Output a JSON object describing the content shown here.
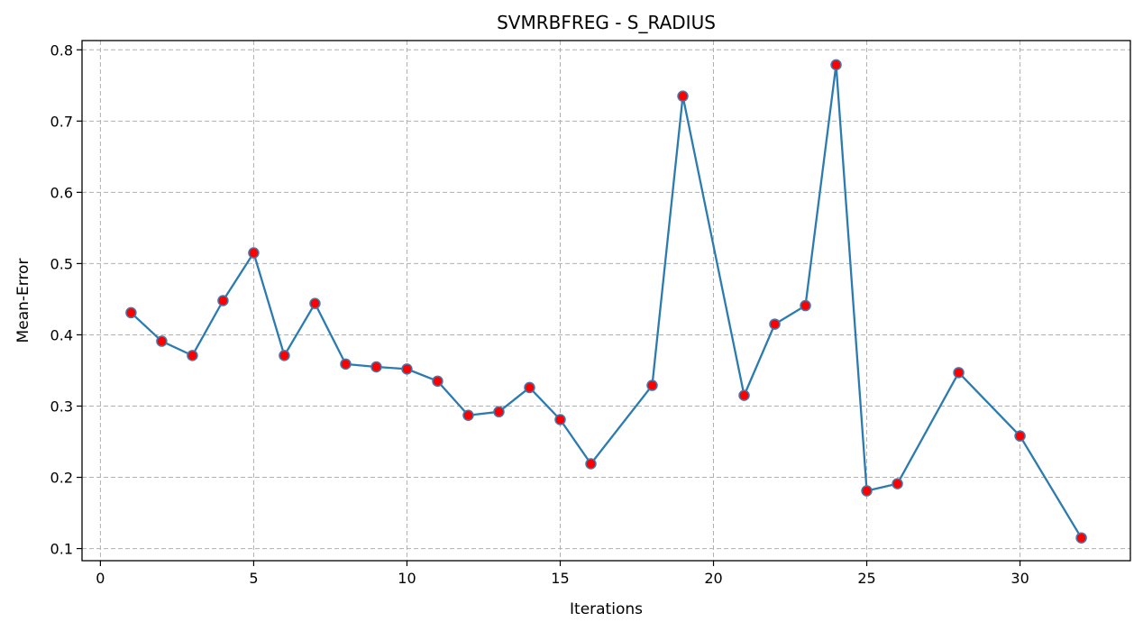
{
  "chart_data": {
    "type": "line",
    "title": "SVMRBFREG - S_RADIUS",
    "xlabel": "Iterations",
    "ylabel": "Mean-Error",
    "xlim": [
      -0.6,
      33.6
    ],
    "ylim": [
      0.083,
      0.813
    ],
    "xticks": [
      0,
      5,
      10,
      15,
      20,
      25,
      30
    ],
    "xtick_labels": [
      "0",
      "5",
      "10",
      "15",
      "20",
      "25",
      "30"
    ],
    "yticks": [
      0.1,
      0.2,
      0.3,
      0.4,
      0.5,
      0.6,
      0.7,
      0.8
    ],
    "ytick_labels": [
      "0.1",
      "0.2",
      "0.3",
      "0.4",
      "0.5",
      "0.6",
      "0.7",
      "0.8"
    ],
    "grid": true,
    "line_color": "#2b7bb0",
    "marker_fill": "#ff0000",
    "marker_edge": "#4a76a8",
    "series": [
      {
        "x": [
          1,
          2,
          3,
          4,
          5,
          6,
          7,
          8,
          9,
          10,
          11,
          12,
          13,
          14,
          15,
          16,
          18,
          19,
          21,
          22,
          23,
          24,
          25,
          26,
          28,
          30,
          32
        ],
        "y": [
          0.431,
          0.391,
          0.371,
          0.448,
          0.515,
          0.371,
          0.444,
          0.359,
          0.355,
          0.352,
          0.335,
          0.287,
          0.292,
          0.326,
          0.281,
          0.219,
          0.329,
          0.735,
          0.315,
          0.415,
          0.441,
          0.779,
          0.181,
          0.191,
          0.347,
          0.258,
          0.115
        ]
      }
    ]
  }
}
